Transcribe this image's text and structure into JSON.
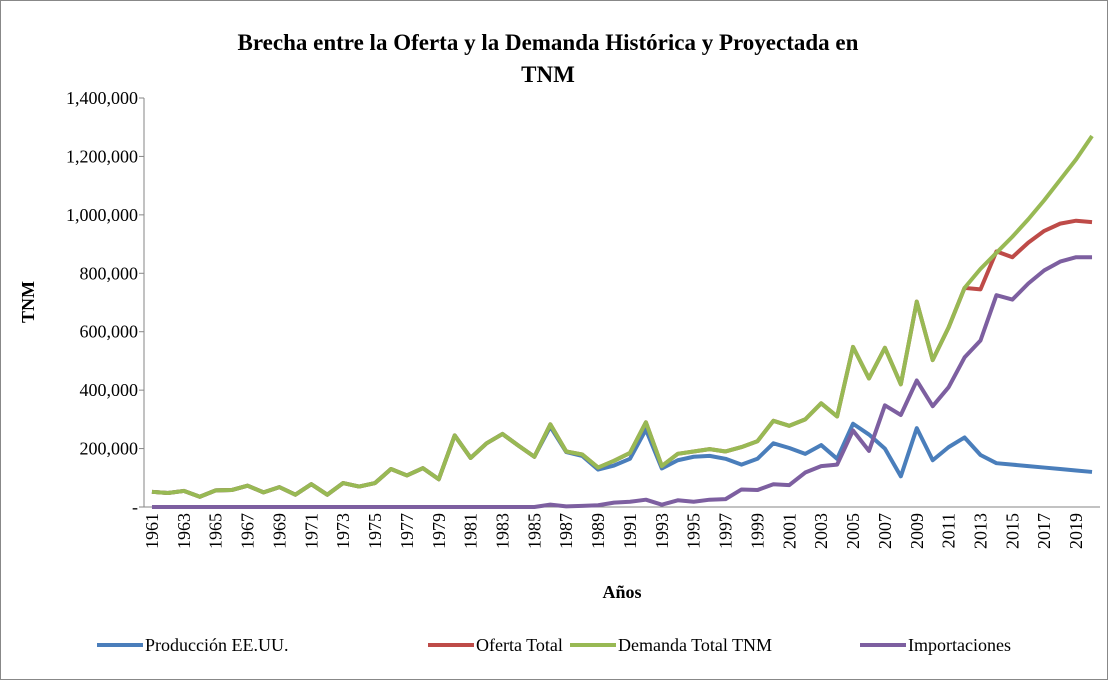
{
  "chart_data": {
    "type": "line",
    "title": [
      "Brecha entre la Oferta y la Demanda Histórica y Proyectada en",
      "TNM"
    ],
    "x_label": "Años",
    "y_label": "TNM",
    "categories": [
      "1961",
      null,
      "1963",
      null,
      "1965",
      null,
      "1967",
      null,
      "1969",
      null,
      "1971",
      null,
      "1973",
      null,
      "1975",
      null,
      "1977",
      null,
      "1979",
      null,
      "1981",
      null,
      "1983",
      null,
      "1985",
      null,
      "1987",
      null,
      "1989",
      null,
      "1991",
      null,
      "1993",
      null,
      "1995",
      null,
      "1997",
      null,
      "1999",
      null,
      "2001",
      null,
      "2003",
      null,
      "2005",
      null,
      "2007",
      null,
      "2009",
      null,
      "2011",
      null,
      "2013",
      null,
      "2015",
      null,
      "2017",
      null,
      "2019",
      null
    ],
    "ylim": [
      0,
      1400000
    ],
    "yticks": [
      {
        "value": 0,
        "label": "-"
      },
      {
        "value": 200000,
        "label": "200,000"
      },
      {
        "value": 400000,
        "label": "400,000"
      },
      {
        "value": 600000,
        "label": "600,000"
      },
      {
        "value": 800000,
        "label": "800,000"
      },
      {
        "value": 1000000,
        "label": "1,000,000"
      },
      {
        "value": 1200000,
        "label": "1,200,000"
      },
      {
        "value": 1400000,
        "label": "1,400,000"
      }
    ],
    "grid": false,
    "legend": "bottom",
    "series": [
      {
        "name": "Producción EE.UU.",
        "color": "#4a7ebb",
        "values": [
          52000,
          48000,
          55000,
          35000,
          57000,
          58000,
          73000,
          50000,
          68000,
          42000,
          78000,
          42000,
          82000,
          70000,
          82000,
          130000,
          108000,
          133000,
          95000,
          245000,
          168000,
          218000,
          250000,
          210000,
          172000,
          275000,
          188000,
          175000,
          128000,
          142000,
          165000,
          265000,
          132000,
          160000,
          172000,
          175000,
          165000,
          145000,
          165000,
          218000,
          202000,
          182000,
          212000,
          165000,
          285000,
          248000,
          200000,
          105000,
          270000,
          160000,
          205000,
          238000,
          178000,
          150000,
          145000,
          140000,
          135000,
          130000,
          125000,
          120000
        ]
      },
      {
        "name": "Oferta Total",
        "color": "#be4b48",
        "values": [
          52000,
          48000,
          55000,
          35000,
          57000,
          58000,
          73000,
          50000,
          68000,
          42000,
          78000,
          42000,
          82000,
          70000,
          82000,
          130000,
          108000,
          133000,
          95000,
          245000,
          168000,
          218000,
          250000,
          210000,
          172000,
          283000,
          190000,
          180000,
          135000,
          158000,
          185000,
          290000,
          140000,
          182000,
          190000,
          198000,
          190000,
          205000,
          225000,
          295000,
          278000,
          300000,
          355000,
          310000,
          548000,
          440000,
          545000,
          420000,
          703000,
          503000,
          615000,
          750000,
          745000,
          875000,
          855000,
          905000,
          945000,
          970000,
          980000,
          975000
        ]
      },
      {
        "name": "Demanda Total TNM",
        "color": "#98b954",
        "values": [
          52000,
          48000,
          55000,
          35000,
          57000,
          58000,
          73000,
          50000,
          68000,
          42000,
          78000,
          42000,
          82000,
          70000,
          82000,
          130000,
          108000,
          133000,
          95000,
          245000,
          168000,
          218000,
          250000,
          210000,
          172000,
          283000,
          190000,
          180000,
          135000,
          158000,
          185000,
          290000,
          140000,
          182000,
          190000,
          198000,
          190000,
          205000,
          225000,
          295000,
          278000,
          300000,
          355000,
          310000,
          548000,
          440000,
          545000,
          420000,
          703000,
          503000,
          615000,
          750000,
          815000,
          870000,
          925000,
          985000,
          1050000,
          1120000,
          1190000,
          1270000
        ]
      },
      {
        "name": "Importaciones",
        "color": "#7d5fa0",
        "values": [
          0,
          0,
          0,
          0,
          0,
          0,
          0,
          0,
          0,
          0,
          0,
          0,
          0,
          0,
          0,
          0,
          0,
          0,
          0,
          0,
          0,
          0,
          0,
          0,
          0,
          8000,
          2000,
          4000,
          6000,
          15000,
          18000,
          25000,
          8000,
          23000,
          18000,
          25000,
          27000,
          60000,
          58000,
          78000,
          75000,
          118000,
          140000,
          145000,
          262000,
          192000,
          348000,
          315000,
          433000,
          345000,
          410000,
          512000,
          570000,
          725000,
          710000,
          765000,
          810000,
          840000,
          855000,
          855000
        ]
      }
    ]
  }
}
